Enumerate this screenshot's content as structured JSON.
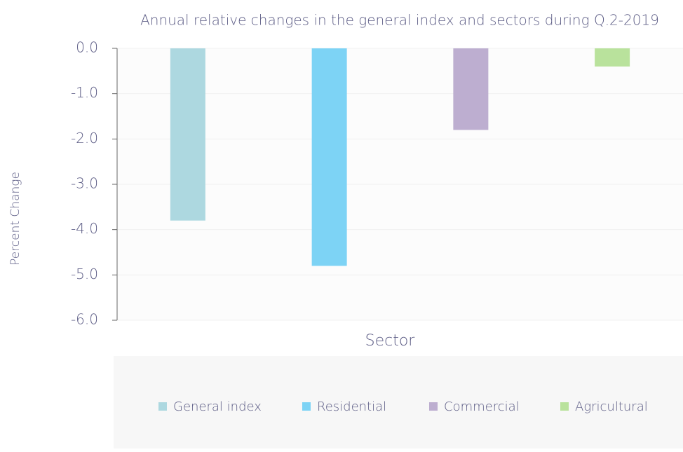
{
  "chart_data": {
    "type": "bar",
    "title": "Annual relative changes in the general index and sectors during Q.2-2019",
    "y_label": "Percent Change",
    "x_label": "Sector",
    "series": [
      {
        "name": "General index",
        "color": "#add8e0",
        "values": [
          -3.8
        ]
      },
      {
        "name": "Residential",
        "color": "#7dd3f5",
        "values": [
          -4.8
        ]
      },
      {
        "name": "Commercial",
        "color": "#bdaed0",
        "values": [
          -1.8
        ]
      },
      {
        "name": "Agricultural",
        "color": "#b9e29c",
        "values": [
          -0.4
        ]
      }
    ],
    "ylim": [
      -6,
      0
    ],
    "yticks": [
      {
        "value": 0,
        "label": "0.0"
      },
      {
        "value": -1,
        "label": "-1.0"
      },
      {
        "value": -2,
        "label": "-2.0"
      },
      {
        "value": -3,
        "label": "-3.0"
      },
      {
        "value": -4,
        "label": "-4.0"
      },
      {
        "value": -5,
        "label": "-5.0"
      },
      {
        "value": -6,
        "label": "-6.0"
      }
    ],
    "grid": true,
    "legend": "bottom"
  }
}
